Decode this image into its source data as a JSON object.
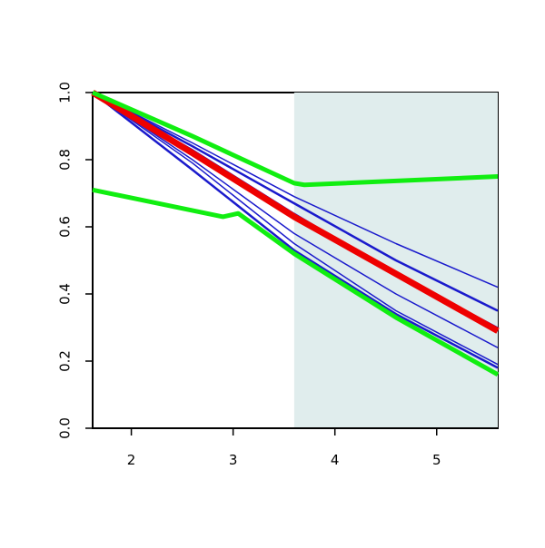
{
  "chart_data": {
    "type": "line",
    "xlim": [
      1.62,
      5.6
    ],
    "ylim": [
      0,
      1
    ],
    "xticks": [
      2,
      3,
      4,
      5
    ],
    "yticks": [
      {
        "value": 0,
        "label": "0.0"
      },
      {
        "value": 0.2,
        "label": "0.2"
      },
      {
        "value": 0.4,
        "label": "0.4"
      },
      {
        "value": 0.6,
        "label": "0.6"
      },
      {
        "value": 0.8,
        "label": "0.8"
      },
      {
        "value": 1,
        "label": "1.0"
      }
    ],
    "shaded_region": [
      3.6,
      5.6
    ],
    "shade_color": "#e0eded",
    "series": [
      {
        "color": "#1a1acc",
        "width": 1.5,
        "x": [
          1.62,
          2.6,
          3.6,
          4.6,
          5.6
        ],
        "values": [
          1.0,
          0.85,
          0.69,
          0.55,
          0.42
        ]
      },
      {
        "color": "#1a1acc",
        "width": 2.5,
        "x": [
          1.62,
          2.6,
          3.6,
          4.6,
          5.6
        ],
        "values": [
          1.0,
          0.84,
          0.67,
          0.5,
          0.35
        ]
      },
      {
        "color": "#1a1acc",
        "width": 1.5,
        "x": [
          1.62,
          2.6,
          3.6,
          4.6,
          5.6
        ],
        "values": [
          1.0,
          0.83,
          0.64,
          0.46,
          0.3
        ]
      },
      {
        "color": "#1a1acc",
        "width": 1.5,
        "x": [
          1.62,
          2.6,
          3.6,
          4.6,
          5.6
        ],
        "values": [
          1.0,
          0.8,
          0.58,
          0.4,
          0.24
        ]
      },
      {
        "color": "#1a1acc",
        "width": 1.5,
        "x": [
          1.62,
          2.6,
          3.6,
          4.6,
          5.6
        ],
        "values": [
          1.0,
          0.79,
          0.55,
          0.35,
          0.19
        ]
      },
      {
        "color": "#1a1acc",
        "width": 2.5,
        "x": [
          1.62,
          2.6,
          3.6,
          4.6,
          5.6
        ],
        "values": [
          1.0,
          0.77,
          0.53,
          0.34,
          0.18
        ]
      },
      {
        "color": "#ee0000",
        "width": 7,
        "x": [
          1.62,
          2.6,
          3.6,
          4.6,
          5.6
        ],
        "values": [
          1.0,
          0.82,
          0.63,
          0.46,
          0.29
        ]
      },
      {
        "color": "#11ee11",
        "width": 5,
        "x": [
          1.62,
          2.6,
          3.6,
          3.7,
          5.6
        ],
        "values": [
          1.0,
          0.87,
          0.73,
          0.725,
          0.75
        ]
      },
      {
        "color": "#11ee11",
        "width": 5,
        "x": [
          1.62,
          2.9,
          3.05,
          3.6,
          4.6,
          5.6
        ],
        "values": [
          0.71,
          0.63,
          0.64,
          0.52,
          0.33,
          0.16
        ]
      }
    ]
  }
}
